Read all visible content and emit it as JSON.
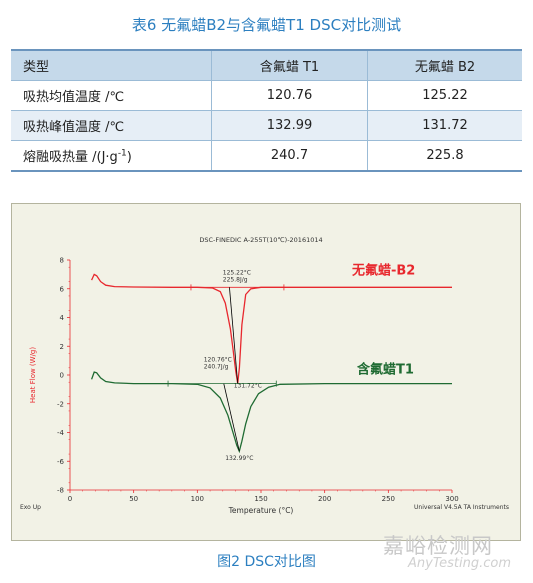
{
  "table": {
    "caption": "表6 无氟蜡B2与含氟蜡T1 DSC对比测试",
    "headers": [
      "类型",
      "含氟蜡 T1",
      "无氟蜡 B2"
    ],
    "rows": [
      {
        "label": "吸热均值温度 /℃",
        "t1": "120.76",
        "b2": "125.22"
      },
      {
        "label": "吸热峰值温度 /℃",
        "t1": "132.99",
        "b2": "131.72"
      },
      {
        "label": "熔融吸热量 /(J·g",
        "label_sup": "-1",
        "label_end": ")",
        "t1": "240.7",
        "b2": "225.8"
      }
    ]
  },
  "chart_data": {
    "type": "line",
    "title": "DSC-FINEDIC A-255T(10℃)-20161014",
    "xlabel": "Temperature (°C)",
    "ylabel": "Heat Flow (W/g)",
    "xlim": [
      0,
      300
    ],
    "ylim": [
      -8,
      8
    ],
    "xticks": [
      0,
      50,
      100,
      150,
      200,
      250,
      300
    ],
    "yticks": [
      -8,
      -6,
      -4,
      -2,
      0,
      2,
      4,
      6,
      8
    ],
    "footer_left": "Exo Up",
    "footer_right": "Universal V4.5A TA Instruments",
    "grid": false,
    "colors": {
      "b2": "#e8282e",
      "t1": "#1f6b32",
      "axis": "#e8282e",
      "text": "#333333"
    },
    "series": [
      {
        "name": "无氟蜡-B2",
        "key": "b2",
        "x": [
          17,
          19,
          21,
          24,
          28,
          35,
          50,
          80,
          100,
          112,
          118,
          122,
          126,
          128,
          130,
          131.72,
          133,
          135,
          138,
          142,
          150,
          170,
          220,
          300
        ],
        "y": [
          6.6,
          7.0,
          6.9,
          6.5,
          6.25,
          6.15,
          6.12,
          6.1,
          6.1,
          6.05,
          5.8,
          5.0,
          3.2,
          1.8,
          0.4,
          -0.6,
          0.5,
          3.5,
          5.6,
          6.0,
          6.1,
          6.1,
          6.1,
          6.1
        ],
        "onset_label": "125.22°C",
        "area_label": "225.8J/g",
        "peak_label": "131.72°C"
      },
      {
        "name": "含氟蜡T1",
        "key": "t1",
        "x": [
          17,
          19,
          21,
          24,
          28,
          35,
          50,
          80,
          100,
          110,
          118,
          124,
          128,
          131,
          132.99,
          135,
          138,
          142,
          148,
          156,
          165,
          200,
          300
        ],
        "y": [
          -0.3,
          0.2,
          0.15,
          -0.2,
          -0.45,
          -0.55,
          -0.6,
          -0.6,
          -0.65,
          -0.9,
          -1.6,
          -2.8,
          -4.0,
          -4.9,
          -5.3,
          -4.6,
          -3.4,
          -2.2,
          -1.3,
          -0.85,
          -0.65,
          -0.6,
          -0.6
        ],
        "onset_label": "120.76°C",
        "area_label": "240.7J/g",
        "peak_label": "132.99°C"
      }
    ]
  },
  "figure_caption": "图2 DSC对比图",
  "watermark": {
    "cn": "嘉峪检测网",
    "en": "AnyTesting.com"
  }
}
